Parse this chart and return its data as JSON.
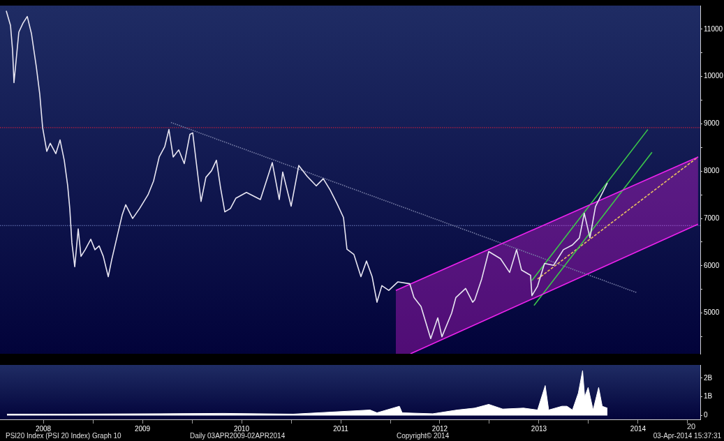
{
  "chart_data": [
    {
      "type": "line",
      "ylim": [
        4140,
        11500
      ],
      "xlim": [
        2008.063,
        2015.127
      ],
      "yticks": [
        {
          "value": 4500,
          "label": null
        },
        5000,
        {
          "value": 5500,
          "label": null
        },
        6000,
        {
          "value": 6500,
          "label": null
        },
        7000,
        {
          "value": 7500,
          "label": null
        },
        8000,
        {
          "value": 8500,
          "label": null
        },
        9000,
        {
          "value": 9500,
          "label": null
        },
        10000,
        {
          "value": 10500,
          "label": null
        },
        11000
      ],
      "tick_labels": "y",
      "grid": false,
      "legend": false,
      "marker": "none",
      "ref_lines": [
        {
          "axis": "y",
          "value": 8920,
          "color": "#e0203a",
          "line_style": "dotted"
        },
        {
          "axis": "y",
          "value": 6850,
          "color": "#7080c0",
          "line_style": "dotted"
        }
      ],
      "series": [
        {
          "color": "#e8e6f2",
          "line_style": "solid",
          "x": [
            2008.126,
            2008.169,
            2008.19,
            2008.204,
            2008.253,
            2008.295,
            2008.338,
            2008.38,
            2008.429,
            2008.464,
            2008.493,
            2008.535,
            2008.57,
            2008.626,
            2008.669,
            2008.711,
            2008.746,
            2008.767,
            2008.788,
            2008.817,
            2008.852,
            2008.88,
            2008.922,
            2008.979,
            2009.021,
            2009.063,
            2009.105,
            2009.155,
            2009.19,
            2009.246,
            2009.295,
            2009.331,
            2009.401,
            2009.471,
            2009.556,
            2009.612,
            2009.669,
            2009.725,
            2009.767,
            2009.81,
            2009.866,
            2009.922,
            2009.979,
            2010.007,
            2010.049,
            2010.091,
            2010.14,
            2010.197,
            2010.246,
            2010.288,
            2010.331,
            2010.387,
            2010.443,
            2010.549,
            2010.69,
            2010.81,
            2010.88,
            2010.915,
            2011.0,
            2011.077,
            2011.162,
            2011.253,
            2011.324,
            2011.394,
            2011.464,
            2011.528,
            2011.563,
            2011.633,
            2011.704,
            2011.76,
            2011.817,
            2011.866,
            2011.915,
            2011.985,
            2012.077,
            2012.197,
            2012.239,
            2012.31,
            2012.408,
            2012.479,
            2012.521,
            2012.619,
            2012.662,
            2012.76,
            2012.831,
            2012.852,
            2012.922,
            2012.993,
            2013.112,
            2013.204,
            2013.274,
            2013.324,
            2013.415,
            2013.429,
            2013.486,
            2013.556,
            2013.647,
            2013.746,
            2013.838,
            2013.908,
            2013.957,
            2014.014,
            2014.07,
            2014.12,
            2014.19
          ],
          "values": [
            11390,
            11080,
            10550,
            9870,
            10940,
            11130,
            11270,
            10910,
            10210,
            9630,
            8920,
            8420,
            8590,
            8370,
            8660,
            8230,
            7690,
            7210,
            6490,
            5980,
            6780,
            6200,
            6340,
            6560,
            6340,
            6420,
            6200,
            5770,
            6130,
            6630,
            7070,
            7290,
            7000,
            7210,
            7500,
            7790,
            8300,
            8520,
            8880,
            8300,
            8450,
            8160,
            8780,
            8810,
            8080,
            7360,
            7870,
            8010,
            8230,
            7650,
            7140,
            7210,
            7430,
            7550,
            7400,
            8180,
            7400,
            7980,
            7260,
            8120,
            7890,
            7690,
            7840,
            7600,
            7310,
            7020,
            6350,
            6240,
            5770,
            6100,
            5770,
            5230,
            5580,
            5480,
            5660,
            5620,
            5330,
            5140,
            4460,
            4900,
            4500,
            5000,
            5330,
            5520,
            5230,
            5280,
            5720,
            6300,
            6150,
            5860,
            6340,
            5910,
            5800,
            5370,
            5570,
            6050,
            6010,
            6340,
            6440,
            6590,
            7110,
            6590,
            7250,
            7460,
            7750
          ]
        },
        {
          "color": "#ee22ee",
          "line_style": "solid",
          "x": [
            2012.056,
            2015.105
          ],
          "values": [
            5480,
            8300
          ]
        },
        {
          "color": "#ee22ee",
          "line_style": "solid",
          "x": [
            2012.056,
            2012.204,
            2015.105
          ],
          "values": [
            null,
            4140,
            6880
          ],
          "lower": [
            4140,
            4140,
            6880
          ],
          "upper": [
            5480,
            5610,
            8300
          ]
        },
        {
          "color": "#3cc84a",
          "line_style": "solid",
          "x": [
            2013.429,
            2014.598
          ],
          "values": [
            5690,
            8880
          ]
        },
        {
          "color": "#3cc84a",
          "line_style": "solid",
          "x": [
            2013.45,
            2014.64
          ],
          "values": [
            5160,
            8400
          ]
        },
        {
          "color": "#e8c060",
          "line_style": "dashed",
          "x": [
            2013.486,
            2015.105
          ],
          "values": [
            5720,
            8300
          ]
        },
        {
          "color": "#7a80a8",
          "line_style": "dotted",
          "x": [
            2009.788,
            2014.49
          ],
          "values": [
            9030,
            5430
          ]
        }
      ]
    },
    {
      "type": "area",
      "ylim": [
        -0.2,
        2.7
      ],
      "xlim": [
        2008.063,
        2015.127
      ],
      "yticks": [
        0,
        {
          "value": 1,
          "label": "1B"
        },
        {
          "value": 2,
          "label": "2B"
        }
      ],
      "xticks": [
        {
          "value": 2008.5,
          "label": "2008"
        },
        {
          "value": 2009,
          "label": null
        },
        {
          "value": 2009.5,
          "label": "2009"
        },
        {
          "value": 2010,
          "label": null
        },
        {
          "value": 2010.5,
          "label": "2010"
        },
        {
          "value": 2011,
          "label": null
        },
        {
          "value": 2011.5,
          "label": "2011"
        },
        {
          "value": 2012,
          "label": null
        },
        {
          "value": 2012.5,
          "label": "2012"
        },
        {
          "value": 2013,
          "label": null
        },
        {
          "value": 2013.5,
          "label": "2013"
        },
        {
          "value": 2014,
          "label": null
        },
        {
          "value": 2014.5,
          "label": "2014"
        },
        {
          "value": 2015,
          "label": null
        }
      ],
      "grid": false,
      "legend": false,
      "marker": "none",
      "annotations": [
        "PSI20 Index (PSI 20 Index) Graph 10",
        "Daily 03APR2009-02APR2014",
        "Copyright© 2014",
        "03-Apr-2014 15:37:31",
        "20"
      ],
      "series": [
        {
          "color": "#ffffff",
          "x": [
            2008.133,
            2008.767,
            2009.683,
            2010.317,
            2011.021,
            2011.796,
            2011.866,
            2012.092,
            2012.12,
            2012.429,
            2012.676,
            2012.852,
            2012.993,
            2013.134,
            2013.345,
            2013.486,
            2013.563,
            2013.598,
            2013.732,
            2013.782,
            2013.838,
            2013.897,
            2013.94,
            2013.961,
            2013.996,
            2014.046,
            2014.102,
            2014.138,
            2014.19
          ],
          "values": [
            0.08,
            0.08,
            0.1,
            0.12,
            0.08,
            0.3,
            0.15,
            0.5,
            0.15,
            0.1,
            0.3,
            0.4,
            0.6,
            0.35,
            0.4,
            0.3,
            1.6,
            0.3,
            0.5,
            0.5,
            0.3,
            1.2,
            2.4,
            1.0,
            1.5,
            0.3,
            1.5,
            0.5,
            0.4
          ]
        }
      ]
    }
  ]
}
